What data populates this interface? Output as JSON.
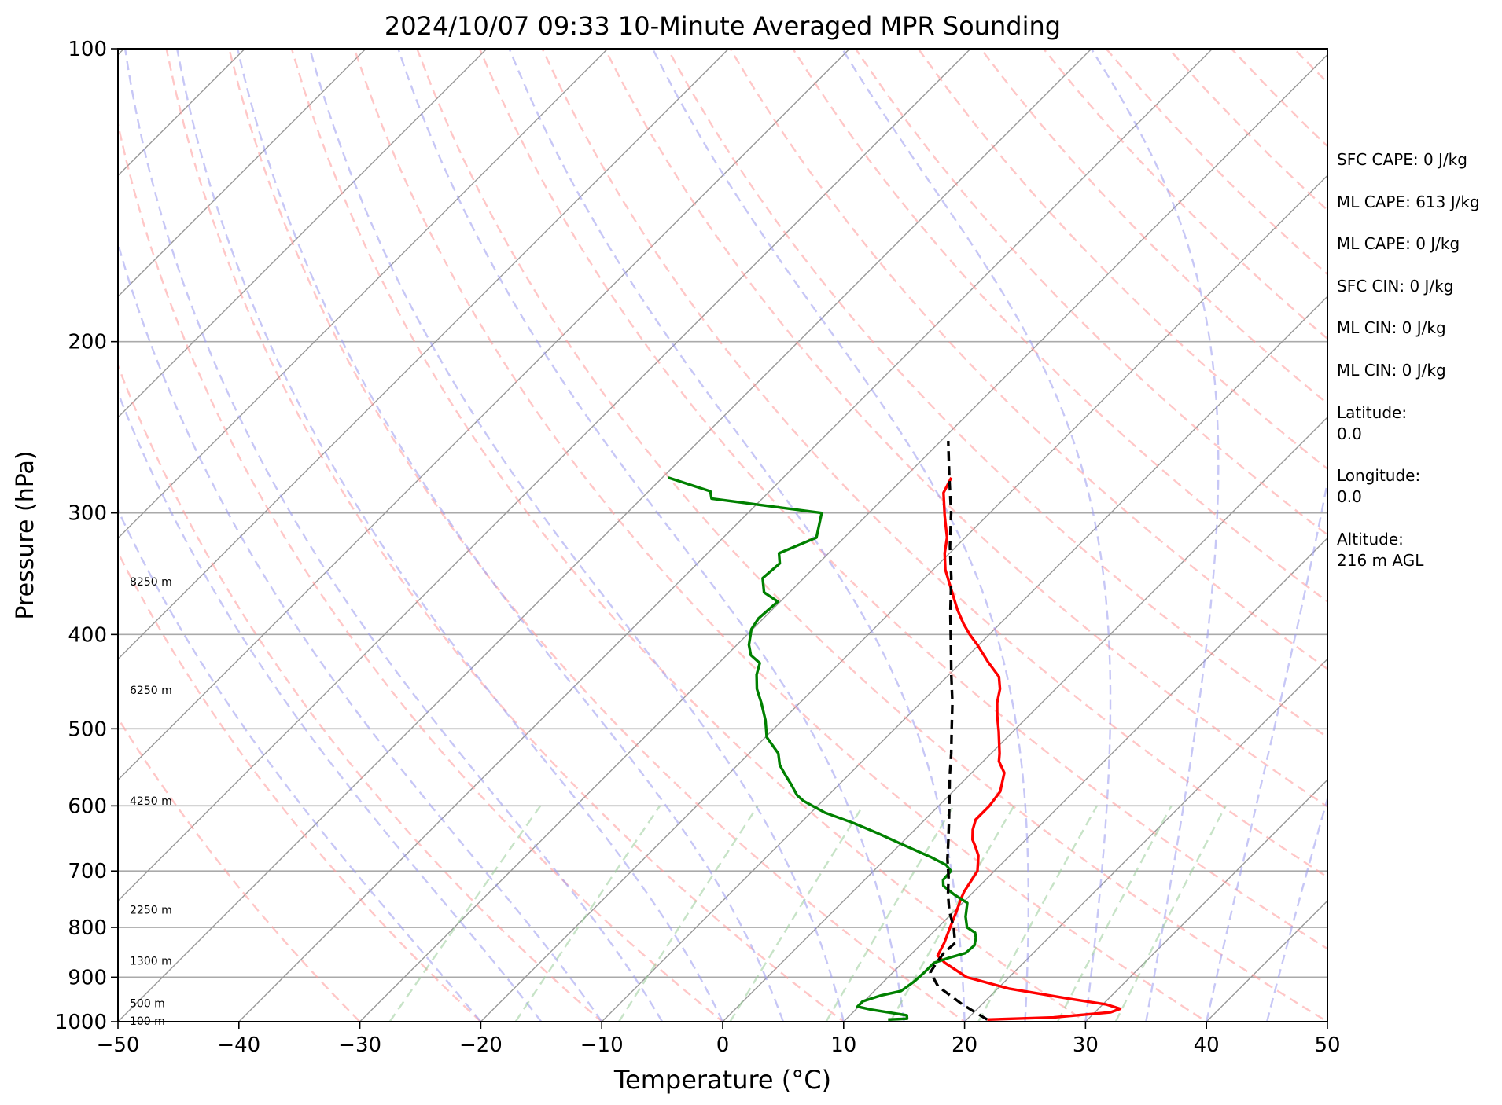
{
  "chart_data": {
    "type": "line",
    "title": "2024/10/07 09:33 10-Minute Averaged MPR Sounding",
    "xlabel": "Temperature (°C)",
    "ylabel": "Pressure (hPa)",
    "xlim": [
      -50,
      50
    ],
    "ylim": [
      1000,
      100
    ],
    "y_scale": "log",
    "x_ticks": [
      "−50",
      "−40",
      "−30",
      "−20",
      "−10",
      "0",
      "10",
      "20",
      "30",
      "40",
      "50"
    ],
    "y_ticks": [
      "100",
      "200",
      "300",
      "400",
      "500",
      "600",
      "700",
      "800",
      "900",
      "1000"
    ],
    "grid": true,
    "height_labels": [
      {
        "text": "8250 m",
        "pressure": 353
      },
      {
        "text": "6250 m",
        "pressure": 456
      },
      {
        "text": "4250 m",
        "pressure": 593
      },
      {
        "text": "2250 m",
        "pressure": 767
      },
      {
        "text": "1300 m",
        "pressure": 866
      },
      {
        "text": "500 m",
        "pressure": 957
      },
      {
        "text": "100 m",
        "pressure": 998
      }
    ],
    "series": [
      {
        "color": "#ff0000",
        "points": [
          [
            21.7,
            995
          ],
          [
            27,
            990
          ],
          [
            31.3,
            978
          ],
          [
            31.8,
            970
          ],
          [
            30.3,
            960
          ],
          [
            27,
            948
          ],
          [
            21,
            925
          ],
          [
            16.5,
            900
          ],
          [
            13.5,
            870
          ],
          [
            12.3,
            855
          ],
          [
            11.8,
            830
          ],
          [
            11,
            800
          ],
          [
            10.2,
            770
          ],
          [
            9.6,
            750
          ],
          [
            9.2,
            735
          ],
          [
            8.6,
            700
          ],
          [
            7.4,
            675
          ],
          [
            6.5,
            662
          ],
          [
            5.6,
            650
          ],
          [
            4.8,
            635
          ],
          [
            4.2,
            620
          ],
          [
            4.2,
            600
          ],
          [
            3.9,
            580
          ],
          [
            2.7,
            555
          ],
          [
            1.3,
            540
          ],
          [
            0.7,
            530
          ],
          [
            -1.2,
            503
          ],
          [
            -2.6,
            485
          ],
          [
            -3.7,
            470
          ],
          [
            -4.6,
            455
          ],
          [
            -5.7,
            442
          ],
          [
            -7.8,
            427
          ],
          [
            -10.1,
            410
          ],
          [
            -11.6,
            400
          ],
          [
            -13,
            390
          ],
          [
            -14.7,
            377
          ],
          [
            -16.8,
            360
          ],
          [
            -19,
            343
          ],
          [
            -20.4,
            330
          ],
          [
            -21.5,
            318
          ],
          [
            -23.5,
            302
          ],
          [
            -25.5,
            286
          ],
          [
            -26.1,
            276
          ]
        ]
      },
      {
        "color": "#008000",
        "points": [
          [
            13.5,
            995
          ],
          [
            15,
            993
          ],
          [
            14.7,
            985
          ],
          [
            11.3,
            972
          ],
          [
            9.9,
            965
          ],
          [
            9.9,
            953
          ],
          [
            10.9,
            940
          ],
          [
            12.2,
            930
          ],
          [
            12.5,
            910
          ],
          [
            12.6,
            890
          ],
          [
            12.6,
            870
          ],
          [
            13.4,
            860
          ],
          [
            14.4,
            850
          ],
          [
            14.5,
            835
          ],
          [
            14,
            820
          ],
          [
            13.5,
            810
          ],
          [
            12.4,
            800
          ],
          [
            11.4,
            780
          ],
          [
            10.4,
            755
          ],
          [
            8.6,
            740
          ],
          [
            7,
            725
          ],
          [
            6.5,
            715
          ],
          [
            6.4,
            700
          ],
          [
            5.5,
            690
          ],
          [
            3.7,
            678
          ],
          [
            1.5,
            665
          ],
          [
            -2.8,
            640
          ],
          [
            -5.6,
            625
          ],
          [
            -8.8,
            610
          ],
          [
            -11.6,
            593
          ],
          [
            -12.6,
            585
          ],
          [
            -14,
            570
          ],
          [
            -15,
            560
          ],
          [
            -16.5,
            545
          ],
          [
            -17.6,
            530
          ],
          [
            -19.9,
            510
          ],
          [
            -21.4,
            490
          ],
          [
            -23.2,
            470
          ],
          [
            -24.7,
            455
          ],
          [
            -25.9,
            440
          ],
          [
            -26.6,
            428
          ],
          [
            -28,
            420
          ],
          [
            -29,
            410
          ],
          [
            -30.1,
            395
          ],
          [
            -30.4,
            385
          ],
          [
            -30.2,
            370
          ],
          [
            -32.1,
            362
          ],
          [
            -33.4,
            350
          ],
          [
            -33.2,
            338
          ],
          [
            -34.1,
            330
          ],
          [
            -32.3,
            318
          ],
          [
            -33.9,
            300
          ],
          [
            -44.2,
            290
          ],
          [
            -44.9,
            285
          ],
          [
            -49.5,
            276
          ]
        ]
      },
      {
        "color": "#000000",
        "dashed": true,
        "points": [
          [
            21.7,
            995
          ],
          [
            18.4,
            960
          ],
          [
            14.9,
            920
          ],
          [
            13.1,
            890
          ],
          [
            12.8,
            870
          ],
          [
            12.6,
            850
          ],
          [
            12.7,
            830
          ],
          [
            11.3,
            800
          ],
          [
            9.6,
            770
          ],
          [
            8.1,
            740
          ],
          [
            6.7,
            710
          ],
          [
            5.1,
            680
          ],
          [
            3.6,
            650
          ],
          [
            2,
            620
          ],
          [
            0.3,
            590
          ],
          [
            -1.5,
            560
          ],
          [
            -3.3,
            530
          ],
          [
            -5.3,
            500
          ],
          [
            -7.4,
            470
          ],
          [
            -9.8,
            440
          ],
          [
            -12.3,
            410
          ],
          [
            -15,
            380
          ],
          [
            -17.8,
            350
          ],
          [
            -20.5,
            325
          ],
          [
            -23.2,
            300
          ],
          [
            -26.4,
            275
          ],
          [
            -29.4,
            253
          ]
        ]
      }
    ],
    "colors": {
      "temperature": "#ff0000",
      "dewpoint": "#008000",
      "parcel": "#000000",
      "dry_adiabats": "#ff9999",
      "moist_adiabats": "#9999ee",
      "mixing_ratio": "#99cc99",
      "isotherms": "#999999",
      "isobars": "#aaaaaa"
    }
  },
  "side_panel": {
    "lines": [
      "SFC CAPE: 0 J/kg",
      "ML CAPE: 613 J/kg",
      "ML CAPE: 0 J/kg",
      "SFC CIN: 0 J/kg",
      "ML CIN: 0 J/kg",
      "ML CIN: 0 J/kg"
    ],
    "latitude_label": "Latitude:",
    "latitude_value": "0.0",
    "longitude_label": "Longitude:",
    "longitude_value": "0.0",
    "altitude_label": "Altitude:",
    "altitude_value": "216 m AGL"
  }
}
